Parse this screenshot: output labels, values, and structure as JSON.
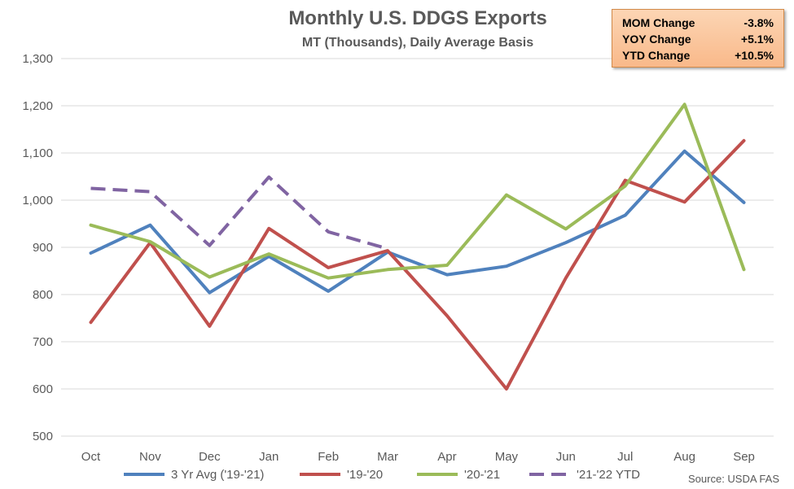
{
  "chart_data": {
    "type": "line",
    "title": "Monthly U.S. DDGS Exports",
    "subtitle": "MT (Thousands), Daily Average Basis",
    "categories": [
      "Oct",
      "Nov",
      "Dec",
      "Jan",
      "Feb",
      "Mar",
      "Apr",
      "May",
      "Jun",
      "Jul",
      "Aug",
      "Sep"
    ],
    "ylim": [
      500,
      1300
    ],
    "yticks": [
      500,
      600,
      700,
      800,
      900,
      1000,
      1100,
      1200,
      1300
    ],
    "ytick_labels": [
      "500",
      "600",
      "700",
      "800",
      "900",
      "1,000",
      "1,100",
      "1,200",
      "1,300"
    ],
    "grid": "horizontal",
    "legend_position": "bottom",
    "series": [
      {
        "name": "3 Yr Avg ('19-'21)",
        "color": "#4f81bd",
        "dashed": false,
        "values": [
          888,
          947,
          804,
          881,
          807,
          890,
          842,
          860,
          910,
          968,
          1104,
          995
        ]
      },
      {
        "name": "'19-'20",
        "color": "#c0504d",
        "dashed": false,
        "values": [
          741,
          910,
          733,
          940,
          857,
          893,
          755,
          600,
          835,
          1042,
          996,
          1126
        ]
      },
      {
        "name": "'20-'21",
        "color": "#9bbb59",
        "dashed": false,
        "values": [
          947,
          912,
          837,
          886,
          835,
          853,
          862,
          1011,
          939,
          1030,
          1203,
          853
        ]
      },
      {
        "name": "'21-'22 YTD",
        "color": "#8064a2",
        "dashed": true,
        "values": [
          1025,
          1018,
          904,
          1049,
          933,
          897,
          null,
          null,
          null,
          null,
          null,
          null
        ]
      }
    ],
    "source": "Source: USDA FAS",
    "changes": [
      {
        "label": "MOM Change",
        "value": "-3.8%"
      },
      {
        "label": "YOY Change",
        "value": "+5.1%"
      },
      {
        "label": "YTD Change",
        "value": "+10.5%"
      }
    ]
  }
}
